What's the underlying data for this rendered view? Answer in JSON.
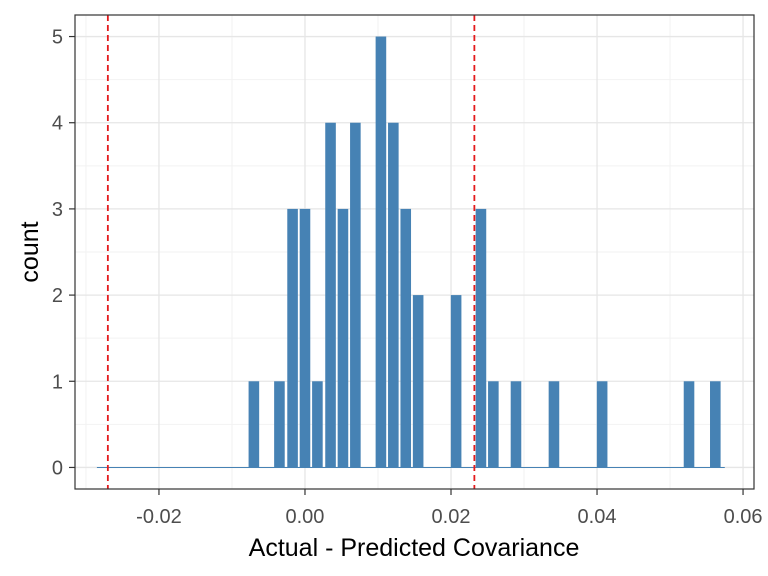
{
  "chart_data": {
    "type": "bar",
    "title": "",
    "xlabel": "Actual - Predicted Covariance",
    "ylabel": "count",
    "xlim": [
      -0.0315,
      0.0615
    ],
    "ylim": [
      -0.25,
      5.25
    ],
    "x_ticks": [
      -0.02,
      0.0,
      0.02,
      0.04,
      0.06
    ],
    "x_tick_labels": [
      "-0.02",
      "0.00",
      "0.02",
      "0.04",
      "0.06"
    ],
    "y_ticks": [
      0,
      1,
      2,
      3,
      4,
      5
    ],
    "y_tick_labels": [
      "0",
      "1",
      "2",
      "3",
      "4",
      "5"
    ],
    "grid": true,
    "bar_width": 0.00145,
    "bar_color": "#4682B4",
    "bars": [
      {
        "x": -0.007,
        "count": 1
      },
      {
        "x": -0.0035,
        "count": 1
      },
      {
        "x": -0.0017,
        "count": 3
      },
      {
        "x": 0.0,
        "count": 3
      },
      {
        "x": 0.0017,
        "count": 1
      },
      {
        "x": 0.0035,
        "count": 4
      },
      {
        "x": 0.0052,
        "count": 3
      },
      {
        "x": 0.0069,
        "count": 4
      },
      {
        "x": 0.0104,
        "count": 5
      },
      {
        "x": 0.0121,
        "count": 4
      },
      {
        "x": 0.0138,
        "count": 3
      },
      {
        "x": 0.0155,
        "count": 2
      },
      {
        "x": 0.0207,
        "count": 2
      },
      {
        "x": 0.0241,
        "count": 3
      },
      {
        "x": 0.0258,
        "count": 1
      },
      {
        "x": 0.0289,
        "count": 1
      },
      {
        "x": 0.0341,
        "count": 1
      },
      {
        "x": 0.0407,
        "count": 1
      },
      {
        "x": 0.0526,
        "count": 1
      },
      {
        "x": 0.0562,
        "count": 1
      }
    ],
    "zero_range": [
      -0.0285,
      0.0575
    ],
    "reference_lines": [
      {
        "x": -0.027,
        "color": "#E41A1C",
        "style": "dashed"
      },
      {
        "x": 0.0232,
        "color": "#E41A1C",
        "style": "dashed"
      }
    ]
  }
}
